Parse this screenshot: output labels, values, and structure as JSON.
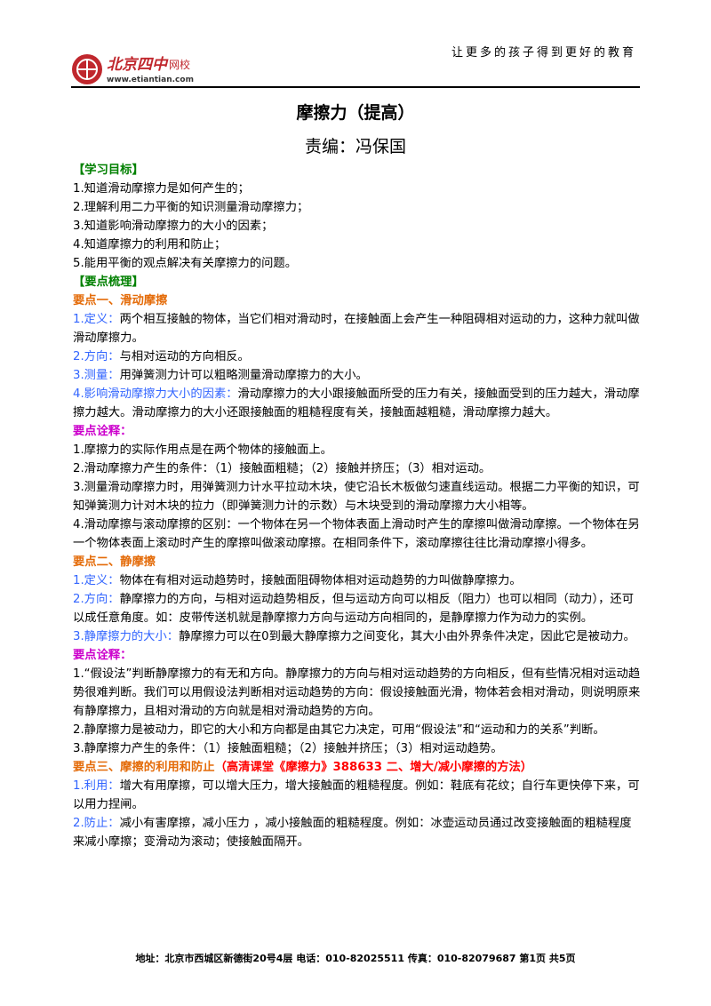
{
  "header": {
    "logo_name": "北京四中",
    "logo_sub": "网校",
    "logo_url": "www.etiantian.com",
    "slogan": "让更多的孩子得到更好的教育"
  },
  "title": "摩擦力（提高）",
  "editor": "责编：冯保国",
  "paragraphs": [
    [
      {
        "text": "【学习目标】",
        "color": "#008000",
        "bold": true
      }
    ],
    [
      {
        "text": "1.知道滑动摩擦力是如何产生的；"
      }
    ],
    [
      {
        "text": "2.理解利用二力平衡的知识测量滑动摩擦力；"
      }
    ],
    [
      {
        "text": "3.知道影响滑动摩擦力的大小的因素；"
      }
    ],
    [
      {
        "text": "4.知道摩擦力的利用和防止；"
      }
    ],
    [
      {
        "text": "5.能用平衡的观点解决有关摩擦力的问题。"
      }
    ],
    [
      {
        "text": "【要点梳理】",
        "color": "#008000",
        "bold": true
      }
    ],
    [
      {
        "text": "要点一、滑动摩擦",
        "color": "#e46c0a",
        "bold": true
      }
    ],
    [
      {
        "text": "1.定义：",
        "color": "#3366ff"
      },
      {
        "text": "两个相互接触的物体，当它们相对滑动时，在接触面上会产生一种阻碍相对运动的力，这种力就叫做滑动摩擦力。"
      }
    ],
    [
      {
        "text": "2.方向：",
        "color": "#3366ff"
      },
      {
        "text": "与相对运动的方向相反。"
      }
    ],
    [
      {
        "text": "3.测量：",
        "color": "#3366ff"
      },
      {
        "text": "用弹簧测力计可以粗略测量滑动摩擦力的大小。"
      }
    ],
    [
      {
        "text": "4.影响滑动摩擦力大小的因素：",
        "color": "#3366ff"
      },
      {
        "text": "滑动摩擦力的大小跟接触面所受的压力有关，接触面受到的压力越大，滑动摩擦力越大。滑动摩擦力的大小还跟接触面的粗糙程度有关，接触面越粗糙，滑动摩擦力越大。"
      }
    ],
    [
      {
        "text": "要点诠释：",
        "color": "#cc00cc",
        "bold": true
      }
    ],
    [
      {
        "text": "1.摩擦力的实际作用点是在两个物体的接触面上。"
      }
    ],
    [
      {
        "text": "2.滑动摩擦力产生的条件：（1）接触面粗糙；（2）接触并挤压；（3）相对运动。"
      }
    ],
    [
      {
        "text": "3.测量滑动摩擦力时，用弹簧测力计水平拉动木块，使它沿长木板做匀速直线运动。根据二力平衡的知识，可知弹簧测力计对木块的拉力（即弹簧测力计的示数）与木块受到的滑动摩擦力大小相等。"
      }
    ],
    [
      {
        "text": "4.滑动摩擦与滚动摩擦的区别：一个物体在另一个物体表面上滑动时产生的摩擦叫做滑动摩擦。一个物体在另一个物体表面上滚动时产生的摩擦叫做滚动摩擦。在相同条件下，滚动摩擦往往比滑动摩擦小得多。"
      }
    ],
    [
      {
        "text": "要点二、静摩擦",
        "color": "#e46c0a",
        "bold": true
      }
    ],
    [
      {
        "text": "1.定义：",
        "color": "#3366ff"
      },
      {
        "text": "物体在有相对运动趋势时，接触面阻碍物体相对运动趋势的力叫做静摩擦力。"
      }
    ],
    [
      {
        "text": "2.方向：",
        "color": "#3366ff"
      },
      {
        "text": "静摩擦力的方向，与相对运动趋势相反，但与运动方向可以相反（阻力）也可以相同（动力），还可以成任意角度。如：皮带传送机就是静摩擦力方向与运动方向相同的，是静摩擦力作为动力的实例。"
      }
    ],
    [
      {
        "text": "3.静摩擦力的大小：",
        "color": "#3366ff"
      },
      {
        "text": "静摩擦力可以在0到最大静摩擦力之间变化，其大小由外界条件决定，因此它是被动力。"
      }
    ],
    [
      {
        "text": "要点诠释：",
        "color": "#cc00cc",
        "bold": true
      }
    ],
    [
      {
        "text": "1.“假设法”判断静摩擦力的有无和方向。静摩擦力的方向与相对运动趋势的方向相反，但有些情况相对运动趋势很难判断。我们可以用假设法判断相对运动趋势的方向：假设接触面光滑，物体若会相对滑动，则说明原来有静摩擦力，且相对滑动的方向就是相对滑动趋势的方向。"
      }
    ],
    [
      {
        "text": "2.静摩擦力是被动力，即它的大小和方向都是由其它力决定，可用“假设法”和“运动和力的关系”判断。"
      }
    ],
    [
      {
        "text": "3.静摩擦力产生的条件：（1）接触面粗糙；（2）接触并挤压；（3）相对运动趋势。"
      }
    ],
    [
      {
        "text": "要点三、摩擦的利用和防止",
        "color": "#e46c0a",
        "bold": true
      },
      {
        "text": "（高清课堂《摩擦力》388633 二、增大/减小摩擦的方法）",
        "color": "#ff0000",
        "bold": true
      }
    ],
    [
      {
        "text": "1.利用：",
        "color": "#3366ff"
      },
      {
        "text": "增大有用摩擦，可以增大压力，增大接触面的粗糙程度。例如：鞋底有花纹；自行车更快停下来，可以用力捏闸。"
      }
    ],
    [
      {
        "text": "2.防止：",
        "color": "#3366ff"
      },
      {
        "text": "减小有害摩擦，减小压力 ，减小接触面的粗糙程度。例如：冰壶运动员通过改变接触面的粗糙程度来减小摩擦；变滑动为滚动；使接触面隔开。"
      }
    ]
  ],
  "footer": "地址：北京市西城区新德街20号4层 电话：010-82025511 传真：010-82079687 第1页 共5页"
}
